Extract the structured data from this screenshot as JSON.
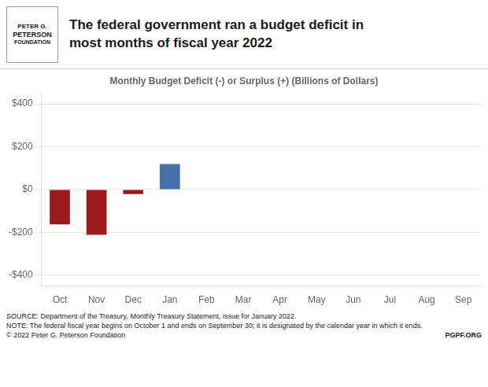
{
  "chart_data": {
    "type": "bar",
    "title": [
      "The federal government ran a budget deficit in",
      "most months of fiscal year 2022"
    ],
    "subtitle": "Monthly Budget Deficit (-) or Surplus (+) (Billions of Dollars)",
    "categories": [
      "Oct",
      "Nov",
      "Dec",
      "Jan",
      "Feb",
      "Mar",
      "Apr",
      "May",
      "Jun",
      "Jul",
      "Aug",
      "Sep"
    ],
    "values": [
      -162,
      -211,
      -21,
      119,
      null,
      null,
      null,
      null,
      null,
      null,
      null,
      null
    ],
    "colors": [
      "#9B1B1B",
      "#9B1B1B",
      "#9B1B1B",
      "#4472A8",
      "#9B1B1B",
      "#9B1B1B",
      "#9B1B1B",
      "#9B1B1B",
      "#9B1B1B",
      "#9B1B1B",
      "#9B1B1B",
      "#9B1B1B"
    ],
    "ylim": [
      -450,
      450
    ],
    "yticks": [
      {
        "value": -400,
        "label": "-$400"
      },
      {
        "value": -200,
        "label": "-$200"
      },
      {
        "value": 0,
        "label": "$0"
      },
      {
        "value": 200,
        "label": "$200"
      },
      {
        "value": 400,
        "label": "$400"
      }
    ],
    "grid": true,
    "annotations": [
      "PETER G.",
      "PETERSON",
      "FOUNDATION",
      "SOURCE: Department of the Treasury, Monthly Treasury Statement, issue for January 2022.",
      "NOTE: The federal fiscal year begins on October 1 and ends on September 30; it is designated by the calendar year in which it ends.",
      "© 2022 Peter G. Peterson Foundation",
      "PGPF.ORG"
    ]
  }
}
